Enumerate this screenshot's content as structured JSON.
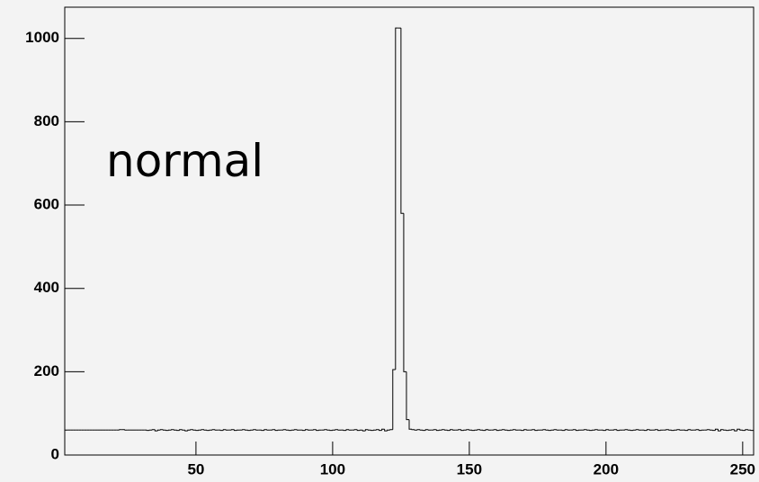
{
  "chart_data": {
    "type": "histogram",
    "annotation": "normal",
    "bins": [
      2,
      3,
      4,
      5,
      6,
      7,
      8,
      9,
      10,
      11,
      12,
      13,
      14,
      15,
      16,
      17,
      18,
      19,
      20,
      21,
      22,
      23,
      24,
      25,
      26,
      27,
      28,
      29,
      30,
      31,
      32,
      33,
      34,
      35,
      36,
      37,
      38,
      39,
      40,
      41,
      42,
      43,
      44,
      45,
      46,
      47,
      48,
      49,
      50,
      51,
      52,
      53,
      54,
      55,
      56,
      57,
      58,
      59,
      60,
      61,
      62,
      63,
      64,
      65,
      66,
      67,
      68,
      69,
      70,
      71,
      72,
      73,
      74,
      75,
      76,
      77,
      78,
      79,
      80,
      81,
      82,
      83,
      84,
      85,
      86,
      87,
      88,
      89,
      90,
      91,
      92,
      93,
      94,
      95,
      96,
      97,
      98,
      99,
      100,
      101,
      102,
      103,
      104,
      105,
      106,
      107,
      108,
      109,
      110,
      111,
      112,
      113,
      114,
      115,
      116,
      117,
      118,
      119,
      120,
      121,
      122,
      123,
      124,
      125,
      126,
      127,
      128,
      129,
      130,
      131,
      132,
      133,
      134,
      135,
      136,
      137,
      138,
      139,
      140,
      141,
      142,
      143,
      144,
      145,
      146,
      147,
      148,
      149,
      150,
      151,
      152,
      153,
      154,
      155,
      156,
      157,
      158,
      159,
      160,
      161,
      162,
      163,
      164,
      165,
      166,
      167,
      168,
      169,
      170,
      171,
      172,
      173,
      174,
      175,
      176,
      177,
      178,
      179,
      180,
      181,
      182,
      183,
      184,
      185,
      186,
      187,
      188,
      189,
      190,
      191,
      192,
      193,
      194,
      195,
      196,
      197,
      198,
      199,
      200,
      201,
      202,
      203,
      204,
      205,
      206,
      207,
      208,
      209,
      210,
      211,
      212,
      213,
      214,
      215,
      216,
      217,
      218,
      219,
      220,
      221,
      222,
      223,
      224,
      225,
      226,
      227,
      228,
      229,
      230,
      231,
      232,
      233,
      234,
      235,
      236,
      237,
      238,
      239,
      240,
      241,
      242,
      243,
      244,
      245,
      246,
      247,
      248,
      249,
      250,
      251,
      252,
      253,
      254
    ],
    "values": [
      60,
      60,
      60,
      60,
      60,
      60,
      60,
      60,
      60,
      60,
      60,
      60,
      60,
      60,
      60,
      60,
      60,
      60,
      60,
      60,
      61,
      61,
      60,
      60,
      60,
      60,
      60,
      60,
      60,
      60,
      59,
      60,
      61,
      58,
      60,
      61,
      60,
      59,
      60,
      61,
      60,
      59,
      61,
      60,
      58,
      60,
      61,
      60,
      59,
      60,
      61,
      60,
      59,
      60,
      61,
      60,
      60,
      59,
      61,
      60,
      60,
      61,
      59,
      60,
      60,
      61,
      60,
      59,
      60,
      61,
      60,
      60,
      59,
      61,
      60,
      60,
      61,
      59,
      60,
      60,
      61,
      60,
      59,
      60,
      61,
      60,
      60,
      59,
      61,
      60,
      60,
      61,
      59,
      60,
      60,
      61,
      60,
      59,
      60,
      61,
      60,
      60,
      59,
      61,
      60,
      60,
      61,
      59,
      60,
      58,
      61,
      60,
      59,
      60,
      61,
      59,
      62,
      58,
      60,
      61,
      205,
      1025,
      1025,
      580,
      200,
      85,
      62,
      61,
      60,
      61,
      60,
      59,
      61,
      60,
      60,
      61,
      59,
      60,
      61,
      60,
      59,
      61,
      60,
      60,
      61,
      59,
      60,
      61,
      60,
      59,
      60,
      61,
      60,
      59,
      61,
      60,
      60,
      61,
      59,
      60,
      61,
      60,
      59,
      60,
      61,
      60,
      60,
      59,
      61,
      60,
      60,
      61,
      59,
      60,
      60,
      61,
      60,
      59,
      60,
      61,
      60,
      60,
      59,
      61,
      60,
      60,
      61,
      59,
      60,
      60,
      61,
      60,
      59,
      60,
      61,
      60,
      60,
      59,
      61,
      60,
      60,
      61,
      59,
      60,
      60,
      61,
      60,
      59,
      60,
      61,
      60,
      60,
      59,
      61,
      60,
      60,
      61,
      59,
      60,
      60,
      61,
      60,
      59,
      60,
      61,
      60,
      60,
      59,
      61,
      60,
      60,
      61,
      59,
      60,
      60,
      61,
      60,
      59,
      62,
      58,
      61,
      60,
      59,
      60,
      61,
      58,
      62,
      60,
      59,
      61,
      60,
      59
    ],
    "color": "#000000",
    "xlim": [
      2,
      254
    ],
    "xticks": [
      50,
      100,
      150,
      200,
      250
    ],
    "ylim": [
      0,
      1075
    ],
    "yticks": [
      0,
      200,
      400,
      600,
      800,
      1000
    ]
  }
}
